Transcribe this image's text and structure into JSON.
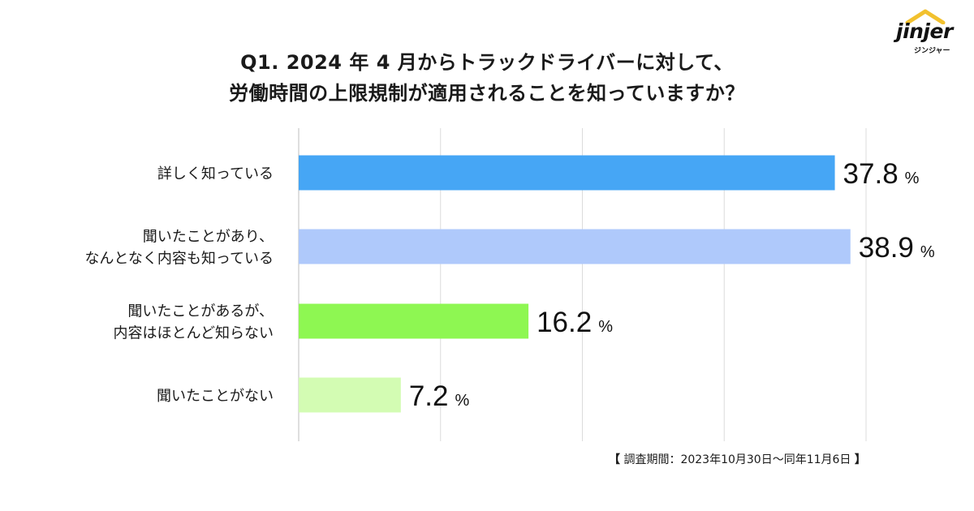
{
  "brand": {
    "name": "jinjer",
    "kana": "ジンジャー",
    "colors": {
      "roof": "#f2c12e"
    }
  },
  "title_lines": [
    "Q1. 2024 年 4 月からトラックドライバーに対して、",
    "労働時間の上限規制が適用されることを知っていますか？"
  ],
  "footnote": {
    "open": "【",
    "text": " 調査期間：2023年10月30日〜同年11月6日 ",
    "close": "】"
  },
  "chart_data": {
    "type": "bar",
    "orientation": "horizontal",
    "title": "Q1. 2024 年 4 月からトラックドライバーに対して、労働時間の上限規制が適用されることを知っていますか？",
    "categories": [
      [
        "詳しく知っている"
      ],
      [
        "聞いたことがあり、",
        "なんとなく内容も知っている"
      ],
      [
        "聞いたことがあるが、",
        "内容はほとんど知らない"
      ],
      [
        "聞いたことがない"
      ]
    ],
    "values": [
      37.8,
      38.9,
      16.2,
      7.2
    ],
    "value_labels": [
      "37.8",
      "38.9",
      "16.2",
      "7.2"
    ],
    "unit": "%",
    "colors": [
      "#46a6f5",
      "#afc9fb",
      "#8ef752",
      "#d3fcb3"
    ],
    "xlim": [
      0,
      40
    ],
    "gridlines": [
      0,
      10,
      20,
      30,
      40
    ],
    "grid": true
  }
}
